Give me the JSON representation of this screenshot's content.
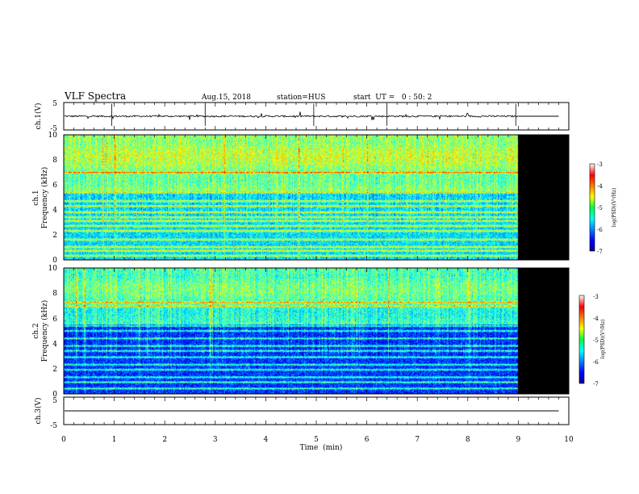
{
  "header": {
    "title": "VLF Spectra",
    "date": "Aug.15, 2018",
    "station": "station=HUS",
    "start": "start  UT =   0 : 50: 2"
  },
  "colors": {
    "background": "#ffffff",
    "no_data": "#000000",
    "trace": "#000000"
  },
  "chart_data": [
    {
      "type": "line",
      "panel": "ch1-waveform",
      "ylabel": "ch.1(V)",
      "yticks": [
        "5",
        "-5"
      ],
      "ylim": [
        -5,
        5
      ],
      "xlim": [
        0,
        10
      ],
      "data_end_min": 9.0,
      "baseline": 0,
      "level_after_end": 0
    },
    {
      "type": "heatmap",
      "panel": "ch1-spectrogram",
      "ylabel": [
        "ch.1",
        "Frequency (kHz)"
      ],
      "yticks": [
        "0",
        "2",
        "4",
        "6",
        "8",
        "10"
      ],
      "ylim": [
        0,
        10
      ],
      "xlim": [
        0,
        10
      ],
      "data_end_min": 9.0,
      "colorbar": {
        "label": "log(PSD)(V²/Hz)",
        "ticks": [
          "-3",
          "-4",
          "-5",
          "-6",
          "-7"
        ],
        "range": [
          -7,
          -3
        ],
        "colormap": "jet"
      },
      "bright_bands_khz": [
        0.3,
        0.7,
        1.0,
        1.6,
        2.3,
        2.7,
        3.1,
        3.4,
        3.8,
        4.3,
        4.7,
        5.4,
        7.0
      ],
      "background_level": -5.6,
      "upper_band_level": -4.9
    },
    {
      "type": "heatmap",
      "panel": "ch2-spectrogram",
      "ylabel": [
        "ch.2",
        "Frequency (kHz)"
      ],
      "yticks": [
        "0",
        "2",
        "4",
        "6",
        "8",
        "10"
      ],
      "ylim": [
        0,
        10
      ],
      "xlim": [
        0,
        10
      ],
      "data_end_min": 9.0,
      "colorbar": {
        "label": "log(PSD)(V²/Hz)",
        "ticks": [
          "-3",
          "-4",
          "-5",
          "-6",
          "-7"
        ],
        "range": [
          -7,
          -3
        ],
        "colormap": "jet"
      },
      "bright_bands_khz": [
        0.4,
        0.9,
        1.3,
        1.9,
        2.3,
        2.9,
        3.4,
        3.8,
        4.4,
        5.0,
        5.4,
        7.0,
        7.3
      ],
      "background_level": -6.3,
      "upper_band_level": -5.2
    },
    {
      "type": "line",
      "panel": "ch3-waveform",
      "ylabel": "ch.3(V)",
      "yticks": [
        "5",
        "-5"
      ],
      "ylim": [
        -5,
        5
      ],
      "xlim": [
        0,
        10
      ],
      "baseline": 0,
      "trace_end_min": 9.8
    }
  ],
  "xaxis": {
    "label": "Time  (min)",
    "ticks": [
      "0",
      "1",
      "2",
      "3",
      "4",
      "5",
      "6",
      "7",
      "8",
      "9",
      "10"
    ]
  }
}
